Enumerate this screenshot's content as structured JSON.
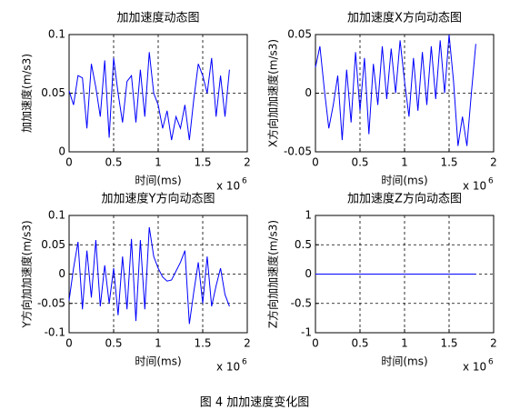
{
  "chart_data": [
    {
      "type": "line",
      "title": "加加速度动态图",
      "xlabel": "时间(ms)",
      "ylabel": "加加速度(m/s3)",
      "x_scale_label": "x 10",
      "x_scale_exponent": 6,
      "xlim": [
        0,
        2
      ],
      "xticks": [
        0,
        0.5,
        1,
        1.5,
        2
      ],
      "ylim": [
        0,
        0.1
      ],
      "yticks": [
        0,
        0.05,
        0.1
      ],
      "grid": true,
      "color": "#0000ff",
      "x": [
        0,
        0.05,
        0.1,
        0.15,
        0.2,
        0.25,
        0.3,
        0.35,
        0.4,
        0.45,
        0.5,
        0.55,
        0.6,
        0.65,
        0.7,
        0.75,
        0.8,
        0.85,
        0.9,
        0.95,
        1,
        1.05,
        1.1,
        1.15,
        1.2,
        1.25,
        1.3,
        1.35,
        1.4,
        1.45,
        1.5,
        1.55,
        1.6,
        1.65,
        1.7,
        1.75,
        1.8
      ],
      "values": [
        0.052,
        0.04,
        0.065,
        0.063,
        0.02,
        0.075,
        0.055,
        0.03,
        0.078,
        0.012,
        0.08,
        0.05,
        0.025,
        0.06,
        0.065,
        0.025,
        0.07,
        0.03,
        0.085,
        0.05,
        0.04,
        0.02,
        0.035,
        0.01,
        0.03,
        0.02,
        0.04,
        0.01,
        0.045,
        0.075,
        0.065,
        0.05,
        0.08,
        0.03,
        0.065,
        0.03,
        0.07
      ]
    },
    {
      "type": "line",
      "title": "加加速度X方向动态图",
      "xlabel": "时间(ms)",
      "ylabel": "X方向加加速度(m/s3)",
      "x_scale_label": "x 10",
      "x_scale_exponent": 6,
      "xlim": [
        0,
        2
      ],
      "xticks": [
        0,
        0.5,
        1,
        1.5,
        2
      ],
      "ylim": [
        -0.05,
        0.05
      ],
      "yticks": [
        -0.05,
        0,
        0.05
      ],
      "grid": true,
      "color": "#0000ff",
      "x": [
        0,
        0.05,
        0.1,
        0.15,
        0.2,
        0.25,
        0.3,
        0.35,
        0.4,
        0.45,
        0.5,
        0.55,
        0.6,
        0.65,
        0.7,
        0.75,
        0.8,
        0.85,
        0.9,
        0.95,
        1,
        1.05,
        1.1,
        1.15,
        1.2,
        1.25,
        1.3,
        1.35,
        1.4,
        1.45,
        1.5,
        1.55,
        1.6,
        1.65,
        1.7,
        1.75,
        1.8
      ],
      "values": [
        0.022,
        0.04,
        0.003,
        -0.03,
        -0.01,
        0.015,
        -0.04,
        0.02,
        -0.025,
        0.035,
        -0.015,
        0.03,
        -0.035,
        0.025,
        -0.01,
        0.04,
        -0.005,
        0.038,
        0.0,
        0.045,
        0.01,
        -0.02,
        0.03,
        -0.015,
        0.035,
        -0.01,
        0.04,
        -0.005,
        0.045,
        0.0,
        0.05,
        0.01,
        -0.045,
        -0.02,
        -0.045,
        0.0,
        0.042
      ]
    },
    {
      "type": "line",
      "title": "加加速度Y方向动态图",
      "xlabel": "时间(ms)",
      "ylabel": "Y方向加加速度(m/s3)",
      "x_scale_label": "x 10",
      "x_scale_exponent": 6,
      "xlim": [
        0,
        2
      ],
      "xticks": [
        0,
        0.5,
        1,
        1.5,
        2
      ],
      "ylim": [
        -0.1,
        0.1
      ],
      "yticks": [
        -0.1,
        -0.05,
        0,
        0.05,
        0.1
      ],
      "grid": true,
      "color": "#0000ff",
      "x": [
        0,
        0.05,
        0.1,
        0.15,
        0.2,
        0.25,
        0.3,
        0.35,
        0.4,
        0.45,
        0.5,
        0.55,
        0.6,
        0.65,
        0.7,
        0.75,
        0.8,
        0.85,
        0.9,
        0.95,
        1,
        1.05,
        1.1,
        1.15,
        1.2,
        1.25,
        1.3,
        1.35,
        1.4,
        1.45,
        1.5,
        1.55,
        1.6,
        1.65,
        1.7,
        1.75,
        1.8
      ],
      "values": [
        -0.045,
        0.01,
        0.055,
        -0.06,
        0.04,
        -0.04,
        0.058,
        -0.055,
        0.015,
        -0.05,
        0.01,
        -0.07,
        0.03,
        -0.06,
        0.06,
        -0.08,
        0.058,
        -0.06,
        0.08,
        0.03,
        0.01,
        -0.005,
        -0.012,
        -0.01,
        0.005,
        0.02,
        0.04,
        -0.085,
        -0.03,
        0.02,
        -0.05,
        0.03,
        -0.055,
        -0.02,
        0.01,
        -0.035,
        -0.055
      ]
    },
    {
      "type": "line",
      "title": "加加速度Z方向动态图",
      "xlabel": "时间(ms)",
      "ylabel": "Z方向加加速度(m/s3)",
      "x_scale_label": "x 10",
      "x_scale_exponent": 6,
      "xlim": [
        0,
        2
      ],
      "xticks": [
        0,
        0.5,
        1,
        1.5,
        2
      ],
      "ylim": [
        -1,
        1
      ],
      "yticks": [
        -1,
        -0.5,
        0,
        0.5,
        1
      ],
      "grid": true,
      "color": "#0000ff",
      "x": [
        0,
        1.8
      ],
      "values": [
        0,
        0
      ]
    }
  ],
  "caption": "图 4 加加速度变化图"
}
